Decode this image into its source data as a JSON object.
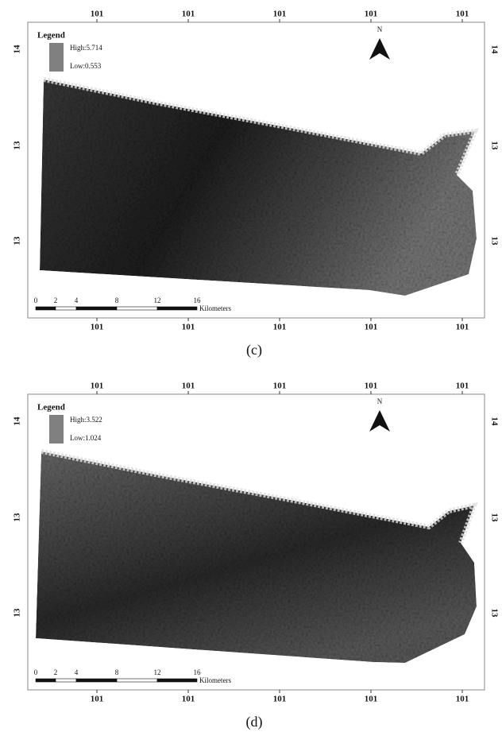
{
  "panels": [
    {
      "top_ticks": [
        "101",
        "101",
        "101",
        "101",
        "101"
      ],
      "bottom_ticks": [
        "101",
        "101",
        "101",
        "101",
        "101"
      ],
      "left_ticks": [
        "14",
        "13",
        "13"
      ],
      "right_ticks": [
        "14",
        "13",
        "13"
      ],
      "legend": {
        "title": "Legend",
        "high": "High:5.714",
        "low": "Low:0.553"
      },
      "north": "N",
      "scale": {
        "labels": [
          "0",
          "2",
          "4",
          "8",
          "12",
          "16"
        ],
        "unit": "Kilometers"
      },
      "caption": "(c)"
    },
    {
      "top_ticks": [
        "101",
        "101",
        "101",
        "101",
        "101"
      ],
      "bottom_ticks": [
        "101",
        "101",
        "101",
        "101",
        "101"
      ],
      "left_ticks": [
        "14",
        "13",
        "13"
      ],
      "right_ticks": [
        "14",
        "13",
        "13"
      ],
      "legend": {
        "title": "Legend",
        "high": "High:3.522",
        "low": "Low:1.024"
      },
      "north": "N",
      "scale": {
        "labels": [
          "0",
          "2",
          "4",
          "8",
          "12",
          "16"
        ],
        "unit": "Kilometers"
      },
      "caption": "(d)"
    }
  ]
}
